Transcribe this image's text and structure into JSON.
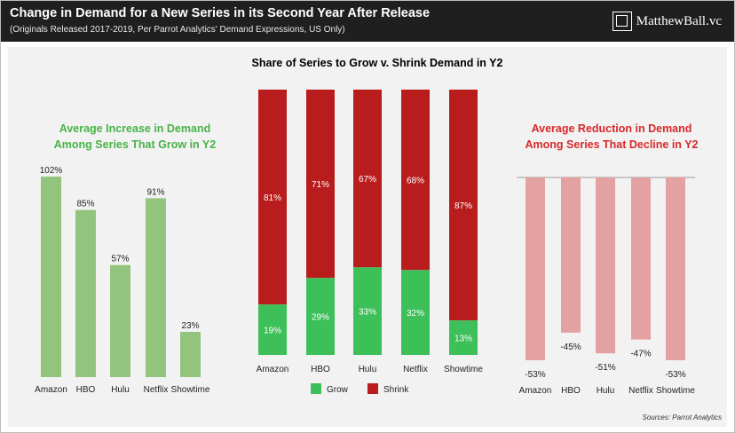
{
  "header": {
    "title": "Change in Demand for a New Series in its Second Year After Release",
    "subtitle": "(Originals Released 2017-2019, Per Parrot Analytics' Demand Expressions, US Only)",
    "brand": "MatthewBall.vc"
  },
  "source": "Sources: Parrot Analytics",
  "colors": {
    "grow_light": "#93c47d",
    "grow_strong": "#3dbf5a",
    "shrink_strong": "#b91c1c",
    "shrink_light": "#e4a1a2",
    "left_title": "#47b347",
    "right_title": "#d8282a"
  },
  "chart_data": [
    {
      "type": "bar",
      "title_lines": [
        "Average Increase in Demand",
        "Among Series That Grow in Y2"
      ],
      "categories": [
        "Amazon",
        "HBO",
        "Hulu",
        "Netflix",
        "Showtime"
      ],
      "values": [
        102,
        85,
        57,
        91,
        23
      ],
      "labels": [
        "102%",
        "85%",
        "57%",
        "91%",
        "23%"
      ],
      "ylim": [
        0,
        102
      ],
      "grid": false
    },
    {
      "type": "bar",
      "stacked": true,
      "title": "Share of Series to Grow v. Shrink Demand in Y2",
      "categories": [
        "Amazon",
        "HBO",
        "Hulu",
        "Netflix",
        "Showtime"
      ],
      "series": [
        {
          "name": "Grow",
          "values": [
            19,
            29,
            33,
            32,
            13
          ],
          "labels": [
            "19%",
            "29%",
            "33%",
            "32%",
            "13%"
          ]
        },
        {
          "name": "Shrink",
          "values": [
            81,
            71,
            67,
            68,
            87
          ],
          "labels": [
            "81%",
            "71%",
            "67%",
            "68%",
            "87%"
          ]
        }
      ],
      "ylim": [
        0,
        100
      ],
      "legend": "bottom",
      "grid": false
    },
    {
      "type": "bar",
      "title_lines": [
        "Average Reduction in Demand",
        "Among Series That Decline in Y2"
      ],
      "categories": [
        "Amazon",
        "HBO",
        "Hulu",
        "Netflix",
        "Showtime"
      ],
      "values": [
        -53,
        -45,
        -51,
        -47,
        -53
      ],
      "labels": [
        "-53%",
        "-45%",
        "-51%",
        "-47%",
        "-53%"
      ],
      "ylim": [
        -53,
        0
      ],
      "grid": false
    }
  ]
}
